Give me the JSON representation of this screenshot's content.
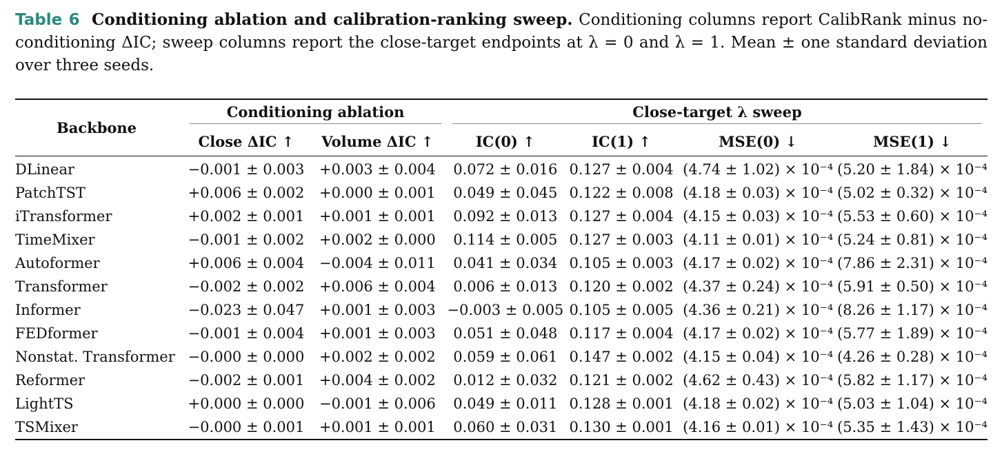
{
  "caption": {
    "label": "Table 6",
    "title": "Conditioning ablation and calibration-ranking sweep.",
    "text": "Conditioning columns report CalibRank minus no-conditioning ΔIC; sweep columns report the close-target endpoints at λ = 0 and λ = 1. Mean ± one standard deviation over three seeds."
  },
  "table": {
    "backbone_header": "Backbone",
    "group_conditioning": "Conditioning ablation",
    "group_sweep": "Close-target λ sweep",
    "columns": [
      "Close ΔIC ↑",
      "Volume ΔIC ↑",
      "IC(0) ↑",
      "IC(1) ↑",
      "MSE(0) ↓",
      "MSE(1) ↓"
    ],
    "rows": [
      {
        "backbone": "DLinear",
        "close_dic": "−0.001 ± 0.003",
        "volume_dic": "+0.003 ± 0.004",
        "ic0": "0.072 ± 0.016",
        "ic1": "0.127 ± 0.004",
        "mse0": "(4.74 ± 1.02) × 10⁻⁴",
        "mse1": "(5.20 ± 1.84) × 10⁻⁴"
      },
      {
        "backbone": "PatchTST",
        "close_dic": "+0.006 ± 0.002",
        "volume_dic": "+0.000 ± 0.001",
        "ic0": "0.049 ± 0.045",
        "ic1": "0.122 ± 0.008",
        "mse0": "(4.18 ± 0.03) × 10⁻⁴",
        "mse1": "(5.02 ± 0.32) × 10⁻⁴"
      },
      {
        "backbone": "iTransformer",
        "close_dic": "+0.002 ± 0.001",
        "volume_dic": "+0.001 ± 0.001",
        "ic0": "0.092 ± 0.013",
        "ic1": "0.127 ± 0.004",
        "mse0": "(4.15 ± 0.03) × 10⁻⁴",
        "mse1": "(5.53 ± 0.60) × 10⁻⁴"
      },
      {
        "backbone": "TimeMixer",
        "close_dic": "−0.001 ± 0.002",
        "volume_dic": "+0.002 ± 0.000",
        "ic0": "0.114 ± 0.005",
        "ic1": "0.127 ± 0.003",
        "mse0": "(4.11 ± 0.01) × 10⁻⁴",
        "mse1": "(5.24 ± 0.81) × 10⁻⁴"
      },
      {
        "backbone": "Autoformer",
        "close_dic": "+0.006 ± 0.004",
        "volume_dic": "−0.004 ± 0.011",
        "ic0": "0.041 ± 0.034",
        "ic1": "0.105 ± 0.003",
        "mse0": "(4.17 ± 0.02) × 10⁻⁴",
        "mse1": "(7.86 ± 2.31) × 10⁻⁴"
      },
      {
        "backbone": "Transformer",
        "close_dic": "−0.002 ± 0.002",
        "volume_dic": "+0.006 ± 0.004",
        "ic0": "0.006 ± 0.013",
        "ic1": "0.120 ± 0.002",
        "mse0": "(4.37 ± 0.24) × 10⁻⁴",
        "mse1": "(5.91 ± 0.50) × 10⁻⁴"
      },
      {
        "backbone": "Informer",
        "close_dic": "−0.023 ± 0.047",
        "volume_dic": "+0.001 ± 0.003",
        "ic0": "−0.003 ± 0.005",
        "ic1": "0.105 ± 0.005",
        "mse0": "(4.36 ± 0.21) × 10⁻⁴",
        "mse1": "(8.26 ± 1.17) × 10⁻⁴"
      },
      {
        "backbone": "FEDformer",
        "close_dic": "−0.001 ± 0.004",
        "volume_dic": "+0.001 ± 0.003",
        "ic0": "0.051 ± 0.048",
        "ic1": "0.117 ± 0.004",
        "mse0": "(4.17 ± 0.02) × 10⁻⁴",
        "mse1": "(5.77 ± 1.89) × 10⁻⁴"
      },
      {
        "backbone": "Nonstat. Transformer",
        "close_dic": "−0.000 ± 0.000",
        "volume_dic": "+0.002 ± 0.002",
        "ic0": "0.059 ± 0.061",
        "ic1": "0.147 ± 0.002",
        "mse0": "(4.15 ± 0.04) × 10⁻⁴",
        "mse1": "(4.26 ± 0.28) × 10⁻⁴"
      },
      {
        "backbone": "Reformer",
        "close_dic": "−0.002 ± 0.001",
        "volume_dic": "+0.004 ± 0.002",
        "ic0": "0.012 ± 0.032",
        "ic1": "0.121 ± 0.002",
        "mse0": "(4.62 ± 0.43) × 10⁻⁴",
        "mse1": "(5.82 ± 1.17) × 10⁻⁴"
      },
      {
        "backbone": "LightTS",
        "close_dic": "+0.000 ± 0.000",
        "volume_dic": "−0.001 ± 0.006",
        "ic0": "0.049 ± 0.011",
        "ic1": "0.128 ± 0.001",
        "mse0": "(4.18 ± 0.02) × 10⁻⁴",
        "mse1": "(5.03 ± 1.04) × 10⁻⁴"
      },
      {
        "backbone": "TSMixer",
        "close_dic": "−0.000 ± 0.001",
        "volume_dic": "+0.001 ± 0.001",
        "ic0": "0.060 ± 0.031",
        "ic1": "0.130 ± 0.001",
        "mse0": "(4.16 ± 0.01) × 10⁻⁴",
        "mse1": "(5.35 ± 1.43) × 10⁻⁴"
      }
    ]
  }
}
